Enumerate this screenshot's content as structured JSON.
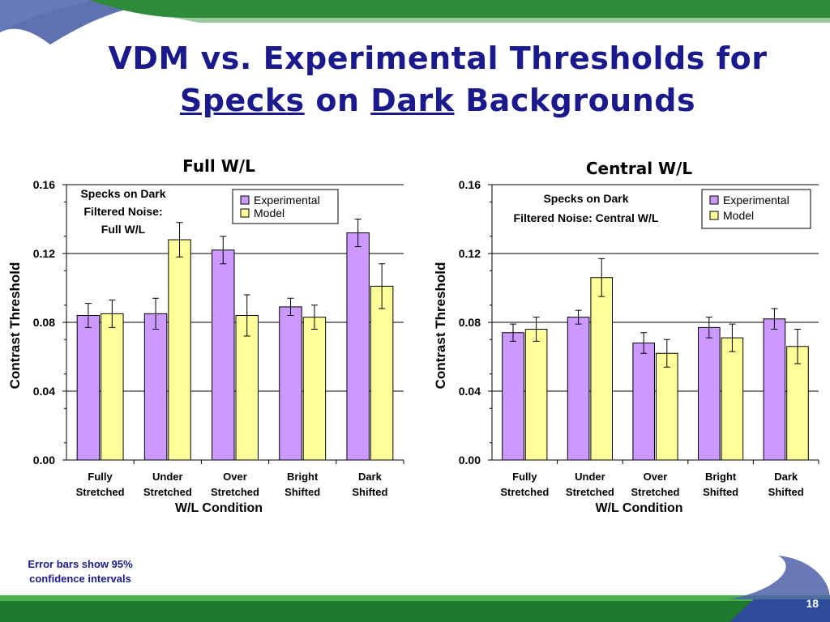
{
  "slide": {
    "title_line1": "VDM vs. Experimental Thresholds for",
    "title_word_specks": "Specks",
    "title_word_on": "on",
    "title_word_dark": "Dark",
    "title_word_backgrounds": "Backgrounds",
    "footnote_line1": "Error bars show 95%",
    "footnote_line2": "confidence intervals",
    "page_number": "18"
  },
  "chart_data": [
    {
      "type": "bar",
      "title": "Full W/L",
      "annotation": [
        "Specks on Dark",
        "Filtered Noise:",
        "Full W/L"
      ],
      "xlabel": "W/L Condition",
      "ylabel": "Contrast Threshold",
      "ylim": [
        0,
        0.16
      ],
      "yticks": [
        "0.00",
        "0.04",
        "0.08",
        "0.12",
        "0.16"
      ],
      "categories": [
        [
          "Fully",
          "Stretched"
        ],
        [
          "Under",
          "Stretched"
        ],
        [
          "Over",
          "Stretched"
        ],
        [
          "Bright",
          "Shifted"
        ],
        [
          "Dark",
          "Shifted"
        ]
      ],
      "series": [
        {
          "name": "Experimental",
          "values": [
            0.084,
            0.085,
            0.122,
            0.089,
            0.132
          ],
          "error": [
            0.007,
            0.009,
            0.008,
            0.005,
            0.008
          ]
        },
        {
          "name": "Model",
          "values": [
            0.085,
            0.128,
            0.084,
            0.083,
            0.101
          ],
          "error": [
            0.008,
            0.01,
            0.012,
            0.007,
            0.013
          ]
        }
      ],
      "colors": {
        "Experimental": "#cc99ff",
        "Model": "#ffff99"
      },
      "grid": true,
      "legend_position": "top-right"
    },
    {
      "type": "bar",
      "title": "Central W/L",
      "annotation": [
        "Specks on Dark",
        "Filtered Noise: Central W/L"
      ],
      "xlabel": "W/L Condition",
      "ylabel": "Contrast Threshold",
      "ylim": [
        0,
        0.16
      ],
      "yticks": [
        "0.00",
        "0.04",
        "0.08",
        "0.12",
        "0.16"
      ],
      "categories": [
        [
          "Fully",
          "Stretched"
        ],
        [
          "Under",
          "Stretched"
        ],
        [
          "Over",
          "Stretched"
        ],
        [
          "Bright",
          "Shifted"
        ],
        [
          "Dark",
          "Shifted"
        ]
      ],
      "series": [
        {
          "name": "Experimental",
          "values": [
            0.074,
            0.083,
            0.068,
            0.077,
            0.082
          ],
          "error": [
            0.005,
            0.004,
            0.006,
            0.006,
            0.006
          ]
        },
        {
          "name": "Model",
          "values": [
            0.076,
            0.106,
            0.062,
            0.071,
            0.066
          ],
          "error": [
            0.007,
            0.011,
            0.008,
            0.008,
            0.01
          ]
        }
      ],
      "colors": {
        "Experimental": "#cc99ff",
        "Model": "#ffff99"
      },
      "grid": true,
      "legend_position": "top-right"
    }
  ],
  "theme": {
    "title_color": "#1a1a8c",
    "accent_green": "#2e8b3a",
    "accent_blue": "#4a5fa8"
  }
}
